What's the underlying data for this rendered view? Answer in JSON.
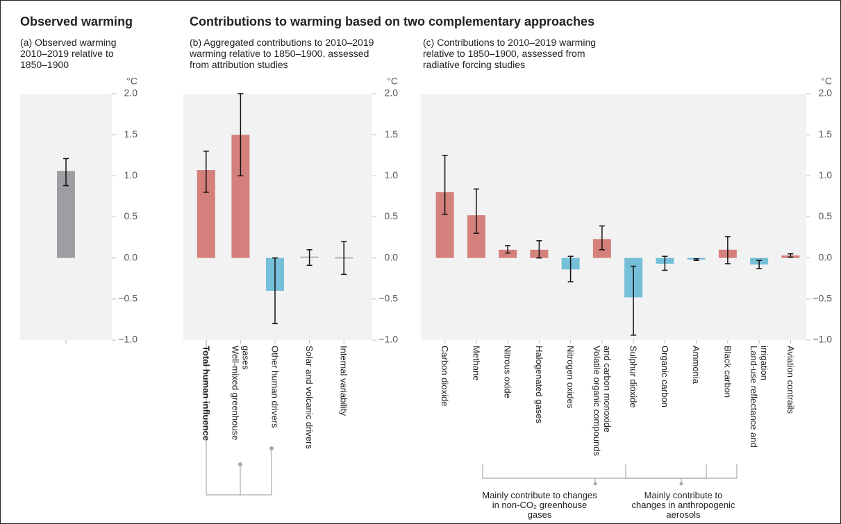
{
  "headings": [
    "Observed warming",
    "Contributions to warming based on two complementary approaches"
  ],
  "chart_data": [
    {
      "type": "bar",
      "title": "(a) Observed warming 2010–2019 relative to 1850–1900",
      "y_unit": "°C",
      "categories": [
        null
      ],
      "values": [
        1.06
      ],
      "lower": [
        0.88
      ],
      "upper": [
        1.21
      ],
      "colors": [
        "#9d9ea2"
      ],
      "ylim": [
        -1,
        2
      ],
      "yticks": [
        {
          "value": -1,
          "label": "−1.0"
        },
        {
          "value": -0.5,
          "label": "−0.5"
        },
        {
          "value": 0,
          "label": "0.0"
        },
        {
          "value": 0.5,
          "label": "0.5"
        },
        {
          "value": 1,
          "label": "1.0"
        },
        {
          "value": 1.5,
          "label": "1.5"
        },
        {
          "value": 2,
          "label": "2.0"
        }
      ]
    },
    {
      "type": "bar",
      "title": "(b) Aggregated contributions to 2010–2019 warming relative to 1850–1900, assessed from attribution studies",
      "y_unit": "°C",
      "categories": [
        "Total human influence",
        "Well-mixed greenhouse gases",
        "Other human drivers",
        "Solar and volcanic drivers",
        "Internal variability"
      ],
      "values": [
        1.07,
        1.5,
        -0.4,
        0.01,
        0.0
      ],
      "lower": [
        0.8,
        1.0,
        -0.8,
        -0.09,
        -0.2
      ],
      "upper": [
        1.3,
        2.0,
        0.0,
        0.1,
        0.2
      ],
      "colors": [
        "#d4807c",
        "#d4807c",
        "#76bfd8",
        "#9d9ea2",
        "#9d9ea2"
      ],
      "ylim": [
        -1,
        2
      ],
      "yticks": [
        {
          "value": -1,
          "label": "−1.0"
        },
        {
          "value": -0.5,
          "label": "−0.5"
        },
        {
          "value": 0,
          "label": "0.0"
        },
        {
          "value": 0.5,
          "label": "0.5"
        },
        {
          "value": 1,
          "label": "1.0"
        },
        {
          "value": 1.5,
          "label": "1.5"
        },
        {
          "value": 2,
          "label": "2.0"
        }
      ]
    },
    {
      "type": "bar",
      "title": "(c) Contributions to 2010–2019 warming relative to 1850–1900, assessed from radiative forcing studies",
      "y_unit": "°C",
      "categories": [
        "Carbon dioxide",
        "Methane",
        "Nitrous oxide",
        "Halogenated gases",
        "Nitrogen oxides",
        "Volatile organic compounds and carbon monoxide",
        "Sulphur dioxide",
        "Organic carbon",
        "Ammonia",
        "Black carbon",
        "Land-use reflectance and irrigation",
        "Aviation contrails"
      ],
      "values": [
        0.8,
        0.52,
        0.1,
        0.1,
        -0.14,
        0.23,
        -0.48,
        -0.07,
        -0.02,
        0.1,
        -0.08,
        0.03
      ],
      "lower": [
        0.53,
        0.3,
        0.06,
        0.0,
        -0.29,
        0.1,
        -0.94,
        -0.15,
        -0.03,
        -0.07,
        -0.13,
        0.01
      ],
      "upper": [
        1.25,
        0.84,
        0.15,
        0.21,
        0.02,
        0.39,
        -0.1,
        0.02,
        -0.01,
        0.26,
        -0.03,
        0.05
      ],
      "colors": [
        "#d4807c",
        "#d4807c",
        "#d4807c",
        "#d4807c",
        "#76bfd8",
        "#d4807c",
        "#76bfd8",
        "#76bfd8",
        "#76bfd8",
        "#d4807c",
        "#76bfd8",
        "#d4807c"
      ],
      "ylim": [
        -1,
        2
      ],
      "yticks": [
        {
          "value": -1,
          "label": "−1.0"
        },
        {
          "value": -0.5,
          "label": "−0.5"
        },
        {
          "value": 0,
          "label": "0.0"
        },
        {
          "value": 0.5,
          "label": "0.5"
        },
        {
          "value": 1,
          "label": "1.0"
        },
        {
          "value": 1.5,
          "label": "1.5"
        },
        {
          "value": 2,
          "label": "2.0"
        }
      ],
      "annotations": [
        "Mainly contribute to changes in non-CO₂ greenhouse gases",
        "Mainly contribute to changes in anthropogenic aerosols"
      ]
    }
  ]
}
